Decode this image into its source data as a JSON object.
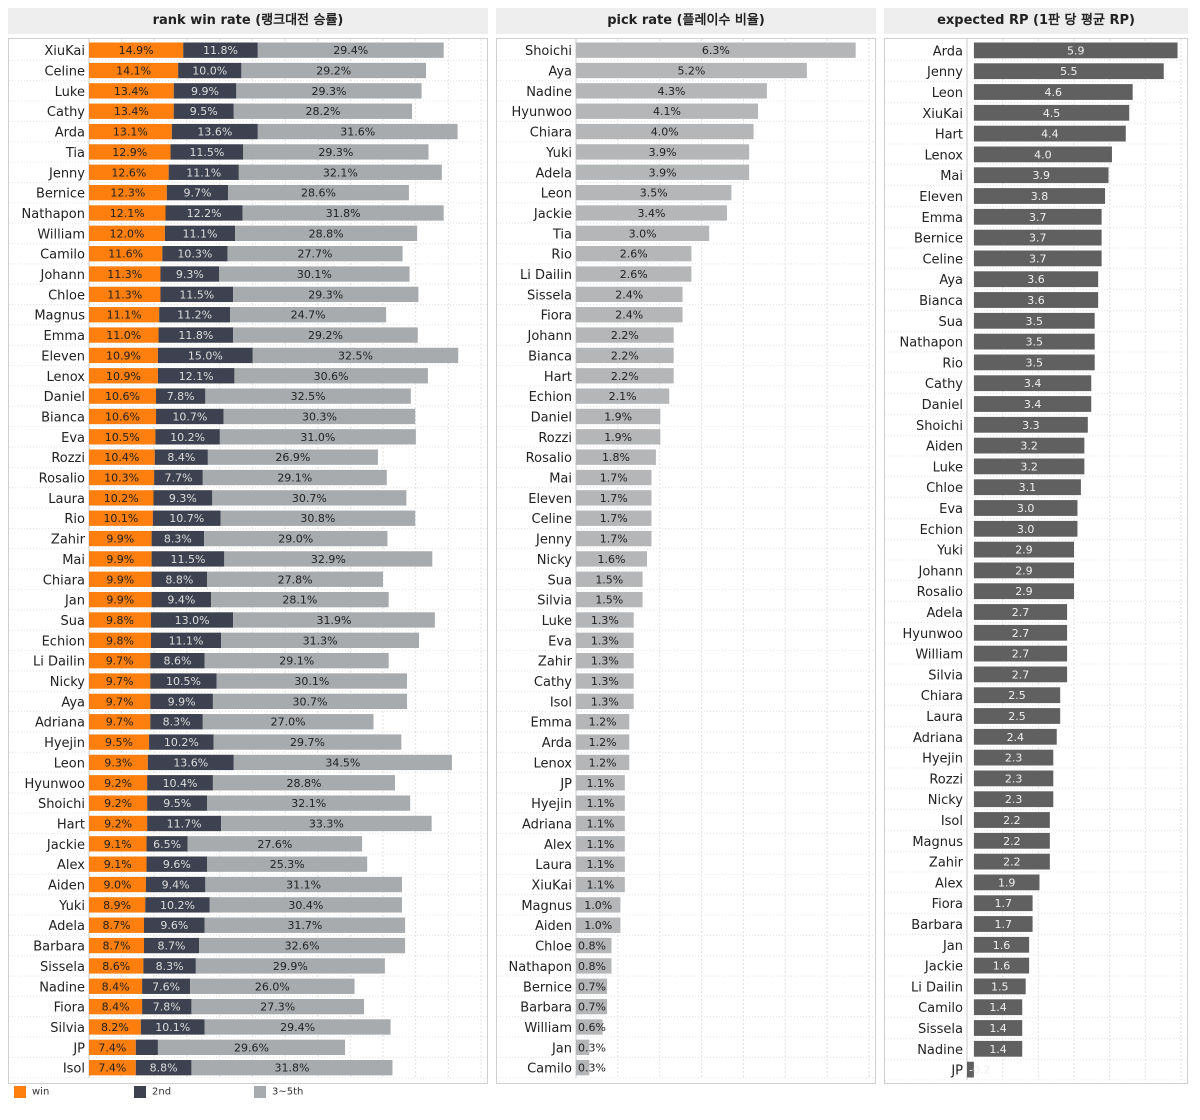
{
  "chart_data": [
    {
      "type": "bar",
      "stacked": true,
      "orientation": "horizontal",
      "title": "rank win rate (랭크대전 승률)",
      "categories": [
        "XiuKai",
        "Celine",
        "Luke",
        "Cathy",
        "Arda",
        "Tia",
        "Jenny",
        "Bernice",
        "Nathapon",
        "William",
        "Camilo",
        "Johann",
        "Chloe",
        "Magnus",
        "Emma",
        "Eleven",
        "Lenox",
        "Daniel",
        "Bianca",
        "Eva",
        "Rozzi",
        "Rosalio",
        "Laura",
        "Rio",
        "Zahir",
        "Mai",
        "Chiara",
        "Jan",
        "Sua",
        "Echion",
        "Li Dailin",
        "Nicky",
        "Aya",
        "Adriana",
        "Hyejin",
        "Leon",
        "Hyunwoo",
        "Shoichi",
        "Hart",
        "Jackie",
        "Alex",
        "Aiden",
        "Yuki",
        "Adela",
        "Barbara",
        "Sissela",
        "Nadine",
        "Fiora",
        "Silvia",
        "JP",
        "Isol"
      ],
      "series": [
        {
          "name": "win",
          "color": "#ff7f0e",
          "values": [
            14.9,
            14.1,
            13.4,
            13.4,
            13.1,
            12.9,
            12.6,
            12.3,
            12.1,
            12.0,
            11.6,
            11.3,
            11.3,
            11.1,
            11.0,
            10.9,
            10.9,
            10.6,
            10.6,
            10.5,
            10.4,
            10.3,
            10.2,
            10.1,
            9.9,
            9.9,
            9.9,
            9.9,
            9.8,
            9.8,
            9.7,
            9.7,
            9.7,
            9.7,
            9.5,
            9.3,
            9.2,
            9.2,
            9.2,
            9.1,
            9.1,
            9.0,
            8.9,
            8.7,
            8.7,
            8.6,
            8.4,
            8.4,
            8.2,
            7.4,
            7.4
          ],
          "labels": [
            "14.9%",
            "14.1%",
            "13.4%",
            "13.4%",
            "13.1%",
            "12.9%",
            "12.6%",
            "12.3%",
            "12.1%",
            "12.0%",
            "11.6%",
            "11.3%",
            "11.3%",
            "11.1%",
            "11.0%",
            "10.9%",
            "10.9%",
            "10.6%",
            "10.6%",
            "10.5%",
            "10.4%",
            "10.3%",
            "10.2%",
            "10.1%",
            "9.9%",
            "9.9%",
            "9.9%",
            "9.9%",
            "9.8%",
            "9.8%",
            "9.7%",
            "9.7%",
            "9.7%",
            "9.7%",
            "9.5%",
            "9.3%",
            "9.2%",
            "9.2%",
            "9.2%",
            "9.1%",
            "9.1%",
            "9.0%",
            "8.9%",
            "8.7%",
            "8.7%",
            "8.6%",
            "8.4%",
            "8.4%",
            "8.2%",
            "7.4%",
            "7.4%"
          ]
        },
        {
          "name": "2nd",
          "color": "#3d4150",
          "values": [
            11.8,
            10.0,
            9.9,
            9.5,
            13.6,
            11.5,
            11.1,
            9.7,
            12.2,
            11.1,
            10.3,
            9.3,
            11.5,
            11.2,
            11.8,
            15.0,
            12.1,
            7.8,
            10.7,
            10.2,
            8.4,
            7.7,
            9.3,
            10.7,
            8.3,
            11.5,
            8.8,
            9.4,
            13.0,
            11.1,
            8.6,
            10.5,
            9.9,
            8.3,
            10.2,
            13.6,
            10.4,
            9.5,
            11.7,
            6.5,
            9.6,
            9.4,
            10.2,
            9.6,
            8.7,
            8.3,
            7.6,
            7.8,
            10.1,
            3.5,
            8.8
          ],
          "labels": [
            "11.8%",
            "10.0%",
            "9.9%",
            "9.5%",
            "13.6%",
            "11.5%",
            "11.1%",
            "9.7%",
            "12.2%",
            "11.1%",
            "10.3%",
            "9.3%",
            "11.5%",
            "11.2%",
            "11.8%",
            "15.0%",
            "12.1%",
            "7.8%",
            "10.7%",
            "10.2%",
            "8.4%",
            "7.7%",
            "9.3%",
            "10.7%",
            "8.3%",
            "11.5%",
            "8.8%",
            "9.4%",
            "13.0%",
            "11.1%",
            "8.6%",
            "10.5%",
            "9.9%",
            "8.3%",
            "10.2%",
            "13.6%",
            "10.4%",
            "9.5%",
            "11.7%",
            "6.5%",
            "9.6%",
            "9.4%",
            "10.2%",
            "9.6%",
            "8.7%",
            "8.3%",
            "7.6%",
            "7.8%",
            "10.1%",
            "",
            "8.8%"
          ]
        },
        {
          "name": "3~5th",
          "color": "#a8abae",
          "values": [
            29.4,
            29.2,
            29.3,
            28.2,
            31.6,
            29.3,
            32.1,
            28.6,
            31.8,
            28.8,
            27.7,
            30.1,
            29.3,
            24.7,
            29.2,
            32.5,
            30.6,
            32.5,
            30.3,
            31.0,
            26.9,
            29.1,
            30.7,
            30.8,
            29.0,
            32.9,
            27.8,
            28.1,
            31.9,
            31.3,
            29.1,
            30.1,
            30.7,
            27.0,
            29.7,
            34.5,
            28.8,
            32.1,
            33.3,
            27.6,
            25.3,
            31.1,
            30.4,
            31.7,
            32.6,
            29.9,
            26.0,
            27.3,
            29.4,
            29.6,
            31.8
          ],
          "labels": [
            "29.4%",
            "29.2%",
            "29.3%",
            "28.2%",
            "31.6%",
            "29.3%",
            "32.1%",
            "28.6%",
            "31.8%",
            "28.8%",
            "27.7%",
            "30.1%",
            "29.3%",
            "24.7%",
            "29.2%",
            "32.5%",
            "30.6%",
            "32.5%",
            "30.3%",
            "31.0%",
            "26.9%",
            "29.1%",
            "30.7%",
            "30.8%",
            "29.0%",
            "32.9%",
            "27.8%",
            "28.1%",
            "31.9%",
            "31.3%",
            "29.1%",
            "30.1%",
            "30.7%",
            "27.0%",
            "29.7%",
            "34.5%",
            "28.8%",
            "32.1%",
            "33.3%",
            "27.6%",
            "25.3%",
            "31.1%",
            "30.4%",
            "31.7%",
            "32.6%",
            "29.9%",
            "26.0%",
            "27.3%",
            "29.4%",
            "29.6%",
            "31.8%"
          ]
        }
      ],
      "xlim": [
        0,
        62
      ],
      "grid": true
    },
    {
      "type": "bar",
      "orientation": "horizontal",
      "title": "pick rate (플레이수 비율)",
      "categories": [
        "Shoichi",
        "Aya",
        "Nadine",
        "Hyunwoo",
        "Chiara",
        "Yuki",
        "Adela",
        "Leon",
        "Jackie",
        "Tia",
        "Rio",
        "Li Dailin",
        "Sissela",
        "Fiora",
        "Johann",
        "Bianca",
        "Hart",
        "Echion",
        "Daniel",
        "Rozzi",
        "Rosalio",
        "Mai",
        "Eleven",
        "Celine",
        "Jenny",
        "Nicky",
        "Sua",
        "Silvia",
        "Luke",
        "Eva",
        "Zahir",
        "Cathy",
        "Isol",
        "Emma",
        "Arda",
        "Lenox",
        "JP",
        "Hyejin",
        "Adriana",
        "Alex",
        "Laura",
        "XiuKai",
        "Magnus",
        "Aiden",
        "Chloe",
        "Nathapon",
        "Bernice",
        "Barbara",
        "William",
        "Jan",
        "Camilo"
      ],
      "values": [
        6.3,
        5.2,
        4.3,
        4.1,
        4.0,
        3.9,
        3.9,
        3.5,
        3.4,
        3.0,
        2.6,
        2.6,
        2.4,
        2.4,
        2.2,
        2.2,
        2.2,
        2.1,
        1.9,
        1.9,
        1.8,
        1.7,
        1.7,
        1.7,
        1.7,
        1.6,
        1.5,
        1.5,
        1.3,
        1.3,
        1.3,
        1.3,
        1.3,
        1.2,
        1.2,
        1.2,
        1.1,
        1.1,
        1.1,
        1.1,
        1.1,
        1.1,
        1.0,
        1.0,
        0.8,
        0.8,
        0.7,
        0.7,
        0.6,
        0.3,
        0.3
      ],
      "labels": [
        "6.3%",
        "5.2%",
        "4.3%",
        "4.1%",
        "4.0%",
        "3.9%",
        "3.9%",
        "3.5%",
        "3.4%",
        "3.0%",
        "2.6%",
        "2.6%",
        "2.4%",
        "2.4%",
        "2.2%",
        "2.2%",
        "2.2%",
        "2.1%",
        "1.9%",
        "1.9%",
        "1.8%",
        "1.7%",
        "1.7%",
        "1.7%",
        "1.7%",
        "1.6%",
        "1.5%",
        "1.5%",
        "1.3%",
        "1.3%",
        "1.3%",
        "1.3%",
        "1.3%",
        "1.2%",
        "1.2%",
        "1.2%",
        "1.1%",
        "1.1%",
        "1.1%",
        "1.1%",
        "1.1%",
        "1.1%",
        "1.0%",
        "1.0%",
        "0.8%",
        "0.8%",
        "0.7%",
        "0.7%",
        "0.6%",
        "0.3%",
        "0.3%"
      ],
      "color": "#b4b6b8",
      "xlim": [
        0,
        6.6
      ],
      "grid": true
    },
    {
      "type": "bar",
      "orientation": "horizontal",
      "title": "expected RP (1판 당 평균 RP)",
      "categories": [
        "Arda",
        "Jenny",
        "Leon",
        "XiuKai",
        "Hart",
        "Lenox",
        "Mai",
        "Eleven",
        "Emma",
        "Bernice",
        "Celine",
        "Aya",
        "Bianca",
        "Sua",
        "Nathapon",
        "Rio",
        "Cathy",
        "Daniel",
        "Shoichi",
        "Aiden",
        "Luke",
        "Chloe",
        "Eva",
        "Echion",
        "Yuki",
        "Johann",
        "Rosalio",
        "Adela",
        "Hyunwoo",
        "William",
        "Silvia",
        "Chiara",
        "Laura",
        "Adriana",
        "Hyejin",
        "Rozzi",
        "Nicky",
        "Isol",
        "Magnus",
        "Zahir",
        "Alex",
        "Fiora",
        "Barbara",
        "Jan",
        "Jackie",
        "Li Dailin",
        "Camilo",
        "Sissela",
        "Nadine",
        "JP"
      ],
      "values": [
        5.9,
        5.5,
        4.6,
        4.5,
        4.4,
        4.0,
        3.9,
        3.8,
        3.7,
        3.7,
        3.7,
        3.6,
        3.6,
        3.5,
        3.5,
        3.5,
        3.4,
        3.4,
        3.3,
        3.2,
        3.2,
        3.1,
        3.0,
        3.0,
        2.9,
        2.9,
        2.9,
        2.7,
        2.7,
        2.7,
        2.7,
        2.5,
        2.5,
        2.4,
        2.3,
        2.3,
        2.3,
        2.2,
        2.2,
        2.2,
        1.9,
        1.7,
        1.7,
        1.6,
        1.6,
        1.5,
        1.4,
        1.4,
        1.4,
        -0.2
      ],
      "labels": [
        "5.9",
        "5.5",
        "4.6",
        "4.5",
        "4.4",
        "4.0",
        "3.9",
        "3.8",
        "3.7",
        "3.7",
        "3.7",
        "3.6",
        "3.6",
        "3.5",
        "3.5",
        "3.5",
        "3.4",
        "3.4",
        "3.3",
        "3.2",
        "3.2",
        "3.1",
        "3.0",
        "3.0",
        "2.9",
        "2.9",
        "2.9",
        "2.7",
        "2.7",
        "2.7",
        "2.7",
        "2.5",
        "2.5",
        "2.4",
        "2.3",
        "2.3",
        "2.3",
        "2.2",
        "2.2",
        "2.2",
        "1.9",
        "1.7",
        "1.7",
        "1.6",
        "1.6",
        "1.5",
        "1.4",
        "1.4",
        "1.4",
        "-0.2"
      ],
      "color": "#606060",
      "xlim": [
        -0.2,
        6.0
      ],
      "grid": true
    }
  ],
  "legend": [
    {
      "label": "win",
      "color": "#ff7f0e"
    },
    {
      "label": "2nd",
      "color": "#3d4150"
    },
    {
      "label": "3~5th",
      "color": "#a8abae"
    }
  ]
}
